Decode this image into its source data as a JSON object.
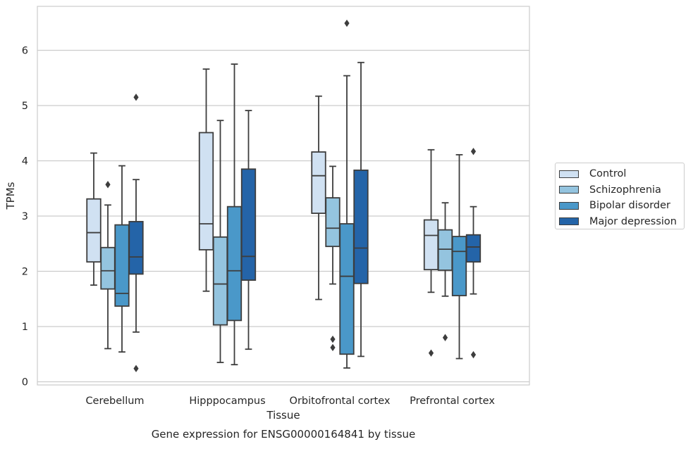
{
  "chart_data": {
    "type": "box",
    "title": "Gene expression for ENSG00000164841 by tissue",
    "xlabel": "Tissue",
    "ylabel": "TPMs",
    "ylim": [
      -0.05,
      6.8
    ],
    "yticks": [
      0,
      1,
      2,
      3,
      4,
      5,
      6
    ],
    "grid": true,
    "legend_placement": "center-right outside",
    "categories": [
      "Cerebellum",
      "Hipppocampus",
      "Orbitofrontal cortex",
      "Prefrontal cortex"
    ],
    "series": [
      {
        "name": "Control",
        "color": "#d0e1f2",
        "boxes": [
          {
            "whislo": 1.75,
            "q1": 2.17,
            "med": 2.7,
            "q3": 3.31,
            "whishi": 4.14,
            "fliers": []
          },
          {
            "whislo": 1.64,
            "q1": 2.39,
            "med": 2.86,
            "q3": 4.51,
            "whishi": 5.66,
            "fliers": []
          },
          {
            "whislo": 1.49,
            "q1": 3.05,
            "med": 3.73,
            "q3": 4.16,
            "whishi": 5.17,
            "fliers": []
          },
          {
            "whislo": 1.62,
            "q1": 2.03,
            "med": 2.65,
            "q3": 2.93,
            "whishi": 4.2,
            "fliers": [
              0.52
            ]
          }
        ]
      },
      {
        "name": "Schizophrenia",
        "color": "#94c4df",
        "boxes": [
          {
            "whislo": 0.6,
            "q1": 1.68,
            "med": 2.01,
            "q3": 2.43,
            "whishi": 3.2,
            "fliers": [
              3.57
            ]
          },
          {
            "whislo": 0.35,
            "q1": 1.03,
            "med": 1.77,
            "q3": 2.62,
            "whishi": 4.73,
            "fliers": []
          },
          {
            "whislo": 1.77,
            "q1": 2.45,
            "med": 2.78,
            "q3": 3.33,
            "whishi": 3.9,
            "fliers": [
              0.77,
              0.62
            ]
          },
          {
            "whislo": 1.55,
            "q1": 2.02,
            "med": 2.4,
            "q3": 2.75,
            "whishi": 3.24,
            "fliers": [
              0.8
            ]
          }
        ]
      },
      {
        "name": "Bipolar disorder",
        "color": "#4a98c9",
        "boxes": [
          {
            "whislo": 0.54,
            "q1": 1.37,
            "med": 1.6,
            "q3": 2.84,
            "whishi": 3.91,
            "fliers": []
          },
          {
            "whislo": 0.31,
            "q1": 1.11,
            "med": 2.01,
            "q3": 3.17,
            "whishi": 5.75,
            "fliers": []
          },
          {
            "whislo": 0.25,
            "q1": 0.5,
            "med": 1.91,
            "q3": 2.86,
            "whishi": 5.54,
            "fliers": [
              6.49
            ]
          },
          {
            "whislo": 0.42,
            "q1": 1.56,
            "med": 2.36,
            "q3": 2.63,
            "whishi": 4.11,
            "fliers": []
          }
        ]
      },
      {
        "name": "Major depression",
        "color": "#2464a8",
        "boxes": [
          {
            "whislo": 0.9,
            "q1": 1.95,
            "med": 2.26,
            "q3": 2.9,
            "whishi": 3.66,
            "fliers": [
              5.15,
              0.24
            ]
          },
          {
            "whislo": 0.59,
            "q1": 1.84,
            "med": 2.27,
            "q3": 3.85,
            "whishi": 4.91,
            "fliers": []
          },
          {
            "whislo": 0.46,
            "q1": 1.78,
            "med": 2.42,
            "q3": 3.83,
            "whishi": 5.78,
            "fliers": []
          },
          {
            "whislo": 1.59,
            "q1": 2.17,
            "med": 2.44,
            "q3": 2.66,
            "whishi": 3.17,
            "fliers": [
              4.17,
              0.49
            ]
          }
        ]
      }
    ]
  }
}
